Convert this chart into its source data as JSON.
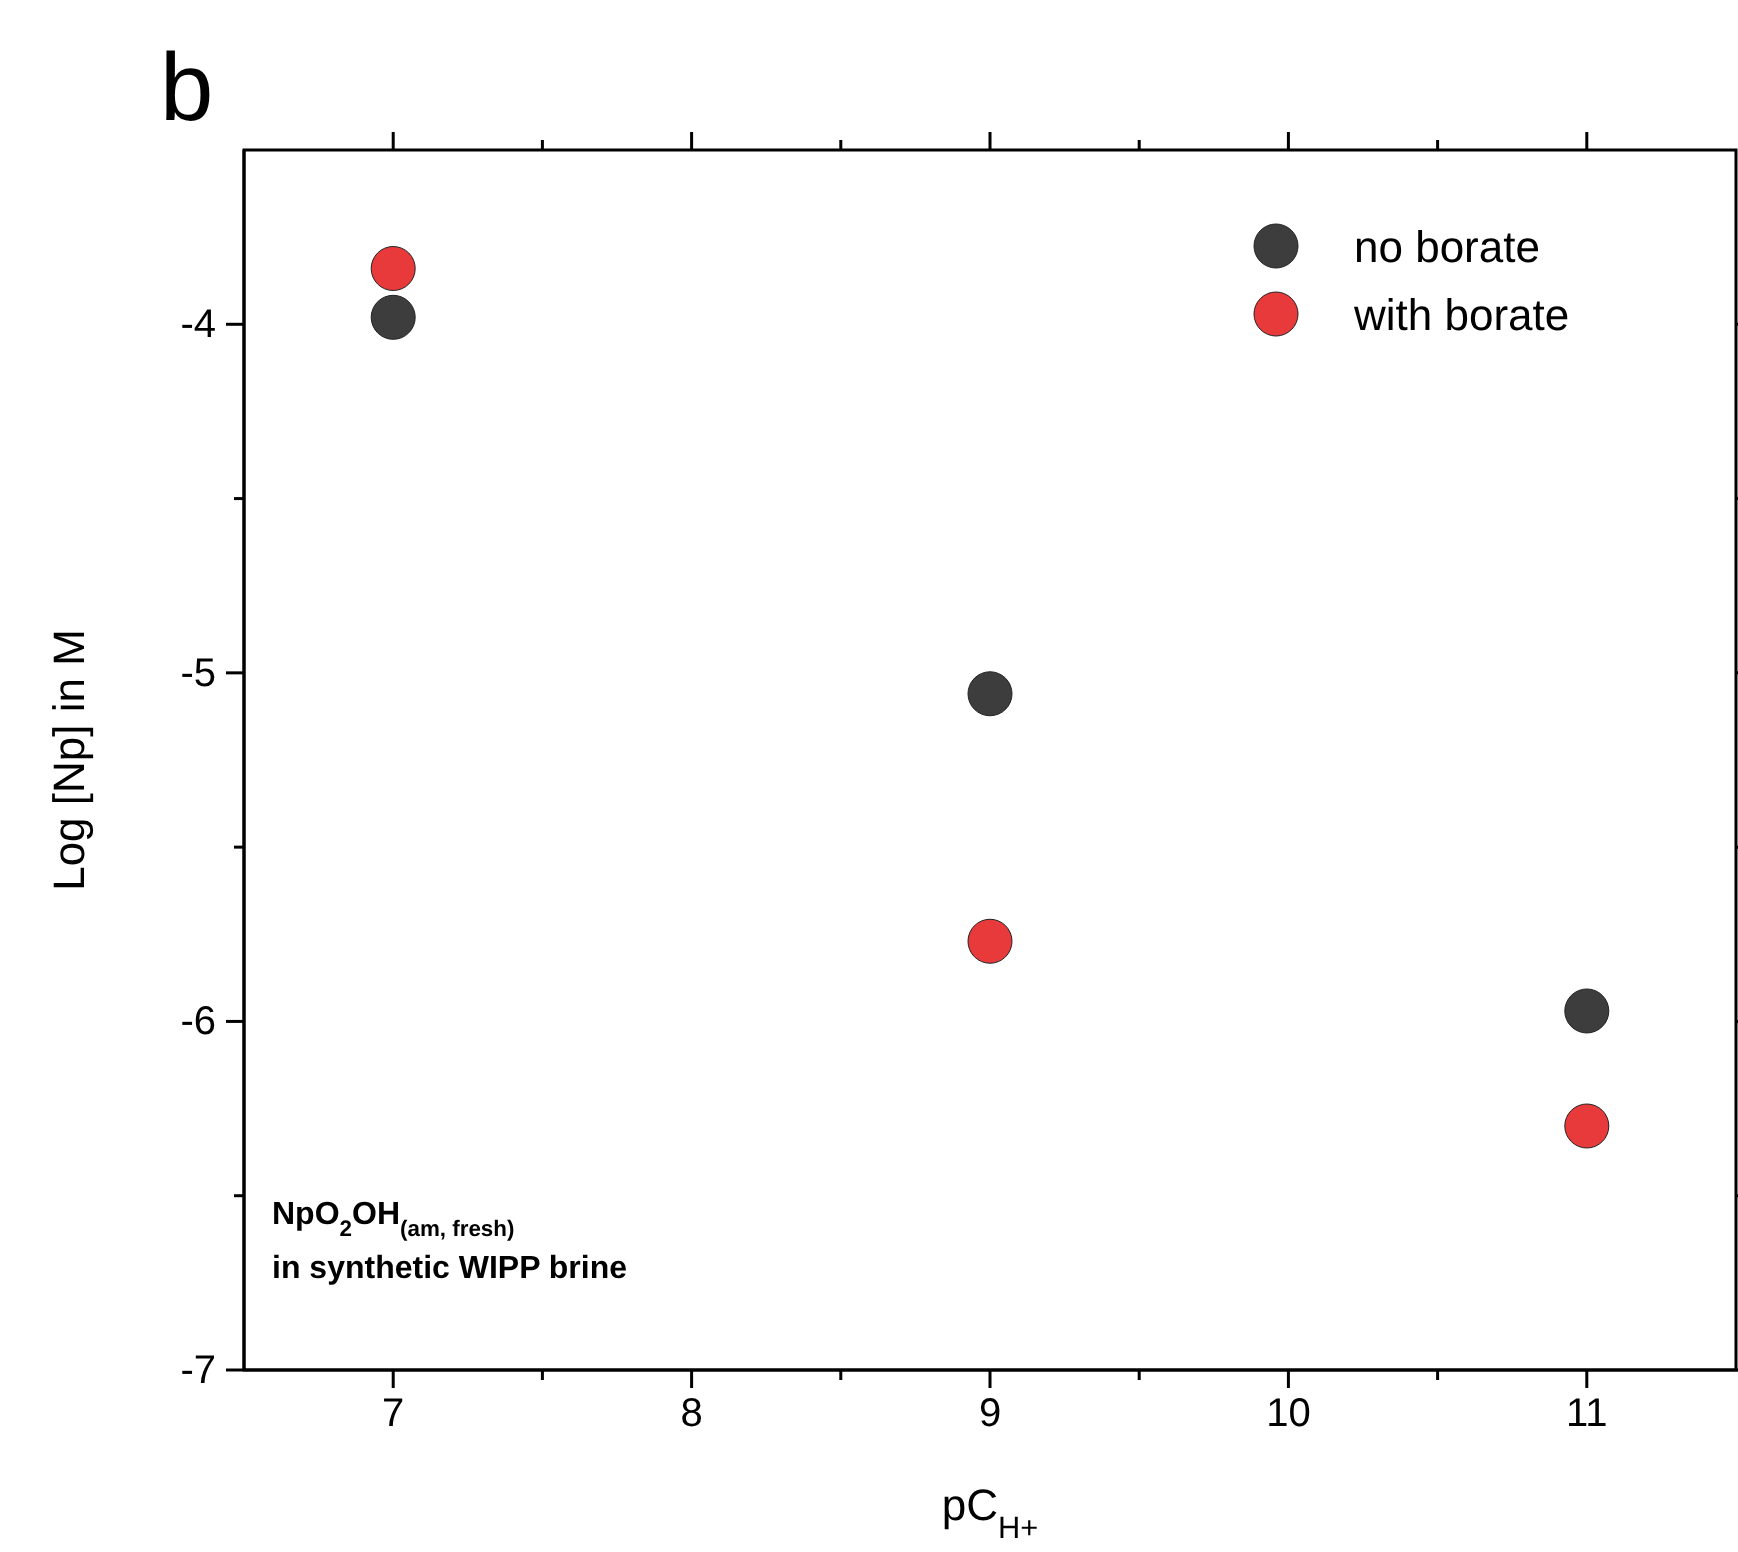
{
  "chart_data": {
    "type": "scatter",
    "title": "b",
    "xlabel": "pC$_{H+}$",
    "ylabel": "Log [Np] in M",
    "x": [
      7,
      9,
      11
    ],
    "series": [
      {
        "name": "no borate",
        "color": "#3d3d3d",
        "values": [
          -3.98,
          -5.06,
          -5.97
        ]
      },
      {
        "name": "with borate",
        "color": "#e83a3a",
        "values": [
          -3.84,
          -5.77,
          -6.3
        ]
      }
    ],
    "xlim": [
      6.5,
      11.5
    ],
    "ylim": [
      -7,
      -3.5
    ],
    "xticks": [
      7,
      {
        "value": 7.5,
        "label": null
      },
      8,
      {
        "value": 8.5,
        "label": null
      },
      9,
      {
        "value": 9.5,
        "label": null
      },
      10,
      {
        "value": 10.5,
        "label": null
      },
      11
    ],
    "yticks": [
      -7,
      {
        "value": -6.5,
        "label": null
      },
      -6,
      {
        "value": -5.5,
        "label": null
      },
      -5,
      {
        "value": -4.5,
        "label": null
      },
      -4
    ],
    "annotations": [
      "NpO$_{2}$OH$_{(am, fresh)}$",
      "in synthetic WIPP brine"
    ],
    "legend": "top right",
    "marker": "circle",
    "grid": false
  }
}
